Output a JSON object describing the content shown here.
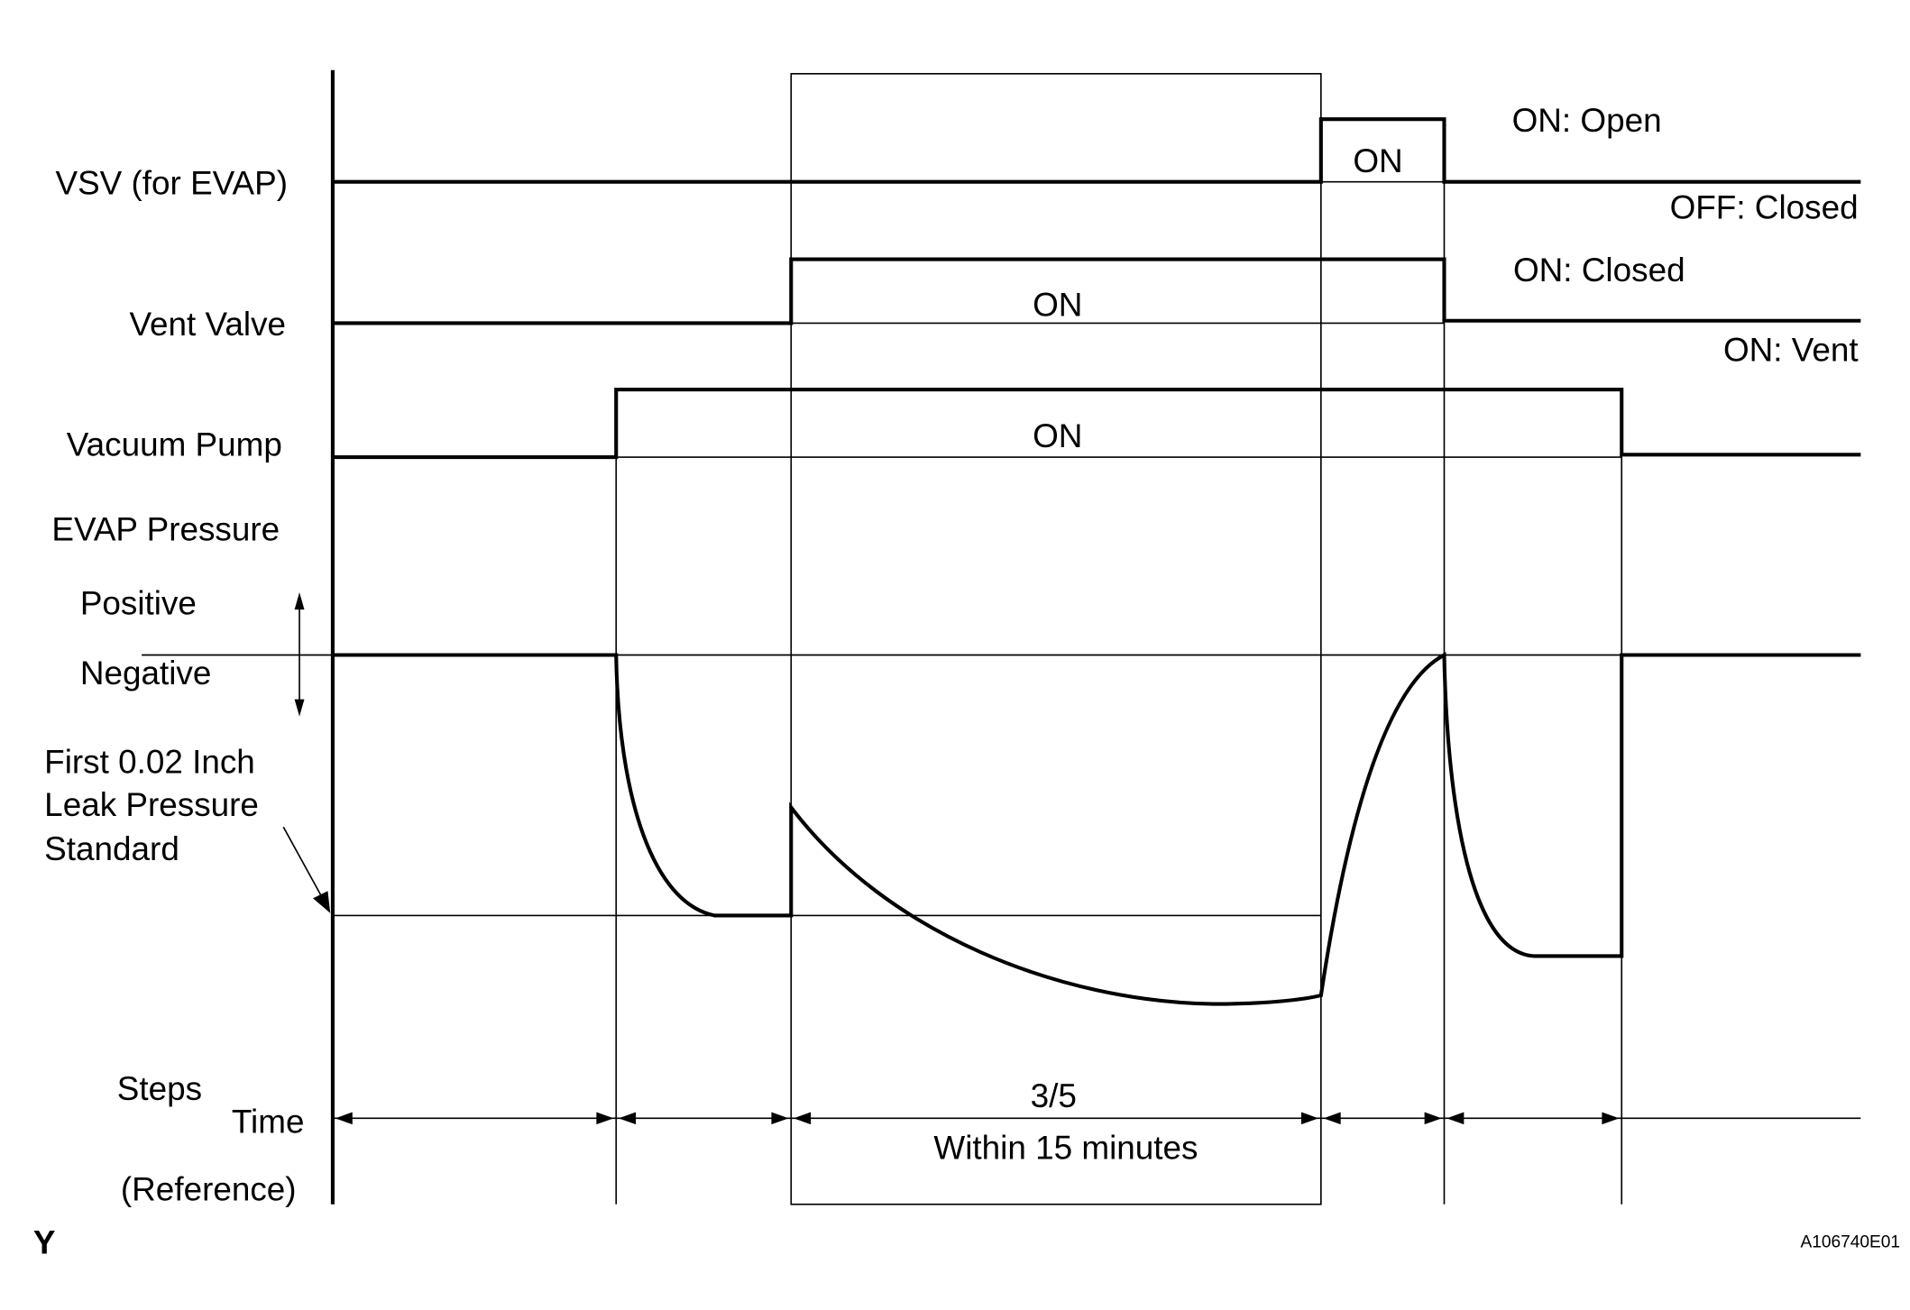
{
  "signals": {
    "vsv": {
      "label": "VSV (for EVAP)",
      "on_label": "ON",
      "state_high": "ON: Open",
      "state_low": "OFF: Closed"
    },
    "vent_valve": {
      "label": "Vent Valve",
      "on_label": "ON",
      "state_high": "ON: Closed",
      "state_low": "ON: Vent"
    },
    "vacuum_pump": {
      "label": "Vacuum Pump",
      "on_label": "ON"
    }
  },
  "pressure": {
    "title": "EVAP Pressure",
    "positive": "Positive",
    "negative": "Negative",
    "standard_line1": "First 0.02 Inch",
    "standard_line2": "Leak Pressure",
    "standard_line3": "Standard"
  },
  "timeline": {
    "steps": "Steps",
    "time": "Time",
    "reference": "(Reference)",
    "step_label": "3/5",
    "duration": "Within 15 minutes"
  },
  "footer": {
    "left_mark": "Y",
    "figure_id": "A106740E01"
  }
}
